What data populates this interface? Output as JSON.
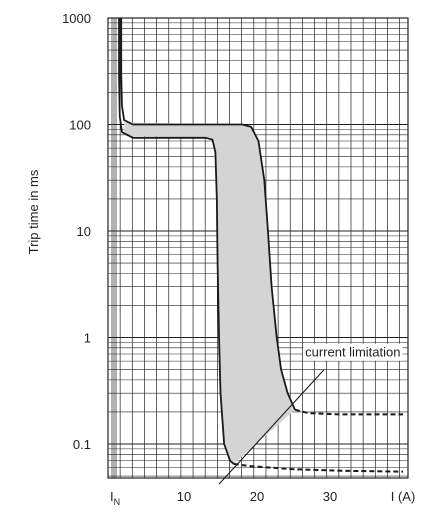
{
  "chart_data": {
    "type": "line",
    "title": "",
    "ylabel": "Trip time in ms",
    "xlabel": "I (A)",
    "y_scale": "log",
    "ylim": [
      0.04,
      1000
    ],
    "xlim": [
      0,
      40
    ],
    "grid": true,
    "y_ticks": [
      {
        "value": 1000,
        "label": "1000"
      },
      {
        "value": 100,
        "label": "100"
      },
      {
        "value": 10,
        "label": "10"
      },
      {
        "value": 1,
        "label": "1"
      },
      {
        "value": 0.1,
        "label": "0.1"
      }
    ],
    "x_ticks": [
      {
        "value": 1,
        "label": "I",
        "sub": "N"
      },
      {
        "value": 10,
        "label": "10"
      },
      {
        "value": 20,
        "label": "20"
      },
      {
        "value": 30,
        "label": "30"
      },
      {
        "value": 40,
        "label": "I (A)"
      }
    ],
    "series": [
      {
        "style": "solid",
        "points": [
          [
            1.4,
            1000
          ],
          [
            1.4,
            300
          ],
          [
            1.5,
            150
          ],
          [
            1.8,
            110
          ],
          [
            3,
            100
          ],
          [
            8,
            100
          ],
          [
            14,
            100
          ],
          [
            18,
            100
          ],
          [
            19.2,
            95
          ],
          [
            20.2,
            70
          ],
          [
            21,
            30
          ],
          [
            21.5,
            10
          ],
          [
            22,
            3
          ],
          [
            22.7,
            1
          ],
          [
            23.3,
            0.5
          ],
          [
            24.2,
            0.3
          ],
          [
            25.2,
            0.21
          ]
        ]
      },
      {
        "style": "solid",
        "points": [
          [
            1.1,
            1000
          ],
          [
            1.1,
            300
          ],
          [
            1.2,
            120
          ],
          [
            1.5,
            85
          ],
          [
            3,
            75
          ],
          [
            8,
            75
          ],
          [
            13,
            75
          ],
          [
            13.9,
            72
          ],
          [
            14.3,
            55
          ],
          [
            14.5,
            20
          ],
          [
            14.6,
            5
          ],
          [
            14.8,
            1
          ],
          [
            15,
            0.3
          ],
          [
            15.5,
            0.1
          ],
          [
            16.3,
            0.07
          ],
          [
            16.8,
            0.065
          ]
        ]
      },
      {
        "style": "dashed",
        "points": [
          [
            25.2,
            0.21
          ],
          [
            27,
            0.195
          ],
          [
            31,
            0.19
          ],
          [
            36,
            0.19
          ],
          [
            40,
            0.19
          ]
        ]
      },
      {
        "style": "dashed",
        "points": [
          [
            16.8,
            0.065
          ],
          [
            19,
            0.062
          ],
          [
            25,
            0.058
          ],
          [
            32,
            0.056
          ],
          [
            40,
            0.055
          ]
        ]
      },
      {
        "name": "current limitation",
        "style": "solid",
        "points": [
          [
            14.8,
            0.042
          ],
          [
            29.2,
            0.5
          ]
        ]
      }
    ],
    "band": {
      "upper": [
        [
          1.8,
          105
        ],
        [
          19.2,
          98
        ],
        [
          20.2,
          70
        ],
        [
          21,
          30
        ],
        [
          21.5,
          10
        ],
        [
          22,
          3
        ],
        [
          22.7,
          1
        ],
        [
          23.3,
          0.5
        ],
        [
          24.2,
          0.3
        ],
        [
          25.2,
          0.21
        ]
      ],
      "lower": [
        [
          16.8,
          0.065
        ],
        [
          16.3,
          0.07
        ],
        [
          15.5,
          0.1
        ],
        [
          15,
          0.3
        ],
        [
          14.8,
          1
        ],
        [
          14.6,
          5
        ],
        [
          14.5,
          20
        ],
        [
          14.3,
          55
        ],
        [
          13.9,
          72
        ],
        [
          13,
          75
        ],
        [
          1.8,
          78
        ]
      ]
    },
    "annotations": [
      {
        "text": "current limitation",
        "x": 27,
        "y": 0.72
      }
    ],
    "colors": {
      "line": "#1a1a1a",
      "band": "#d4d4d4",
      "grid": "#222222"
    }
  }
}
